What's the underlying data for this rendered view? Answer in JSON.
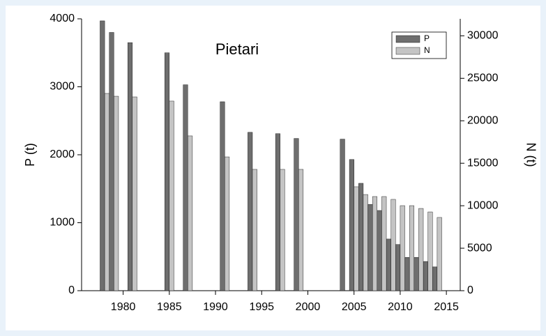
{
  "chart_data": {
    "type": "bar",
    "title": "Pietari",
    "x": [
      1978,
      1979,
      1981,
      1985,
      1987,
      1991,
      1994,
      1997,
      1999,
      2004,
      2005,
      2006,
      2007,
      2008,
      2009,
      2010,
      2011,
      2012,
      2013,
      2014
    ],
    "series": [
      {
        "name": "P",
        "color": "#6e6e6e",
        "values": [
          3970,
          3800,
          3650,
          3500,
          3030,
          2780,
          2330,
          2310,
          2240,
          2230,
          1930,
          1580,
          1270,
          1180,
          760,
          680,
          490,
          490,
          430,
          350
        ]
      },
      {
        "name": "N",
        "color": "#c4c4c4",
        "axis": "y2",
        "values": [
          23220,
          22890,
          22810,
          22320,
          18220,
          15750,
          14280,
          14280,
          14280,
          null,
          12230,
          11320,
          11080,
          11080,
          10750,
          10010,
          10010,
          9680,
          9270,
          8620
        ]
      }
    ],
    "y_label": "P (t)",
    "y2_label": "N (t)",
    "xlim": [
      1975.5,
      2016.5
    ],
    "xticks": [
      1980,
      1985,
      1990,
      1995,
      2000,
      2005,
      2010,
      2015
    ],
    "ylim": [
      0,
      4000
    ],
    "yticks": [
      0,
      1000,
      2000,
      3000,
      4000
    ],
    "y2lim": [
      0,
      32000
    ],
    "y2ticks": [
      0,
      5000,
      10000,
      15000,
      20000,
      25000,
      30000
    ],
    "legend": "upper right"
  }
}
